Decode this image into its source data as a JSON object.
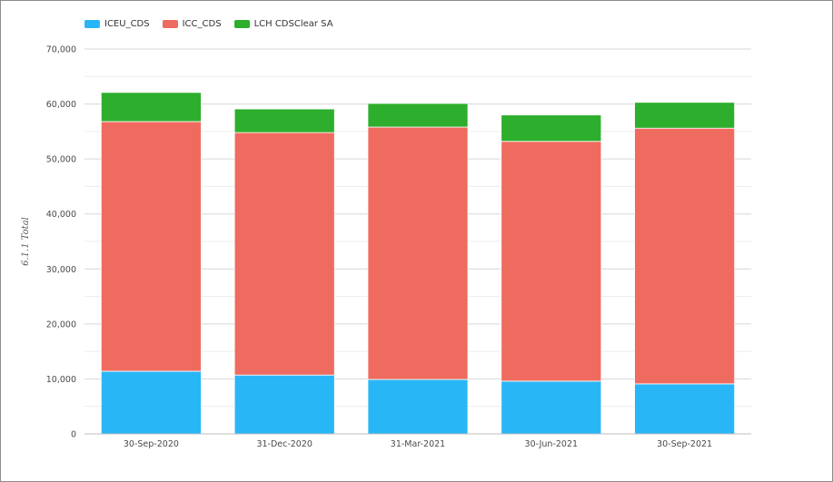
{
  "chart_data": {
    "type": "bar",
    "stacked": true,
    "categories": [
      "30-Sep-2020",
      "31-Dec-2020",
      "31-Mar-2021",
      "30-Jun-2021",
      "30-Sep-2021"
    ],
    "series": [
      {
        "name": "ICEU_CDS",
        "color": "#29b6f6",
        "values": [
          11400,
          10700,
          9900,
          9600,
          9100
        ]
      },
      {
        "name": "ICC_CDS",
        "color": "#f06b5f",
        "values": [
          45400,
          44100,
          45900,
          43600,
          46500
        ]
      },
      {
        "name": "LCH CDSClear SA",
        "color": "#2dae2d",
        "values": [
          5300,
          4300,
          4300,
          4800,
          4700
        ]
      }
    ],
    "title": "",
    "xlabel": "",
    "ylabel": "6.1.1 Total",
    "ylim": [
      0,
      70000
    ],
    "yticks": [
      0,
      10000,
      20000,
      30000,
      40000,
      50000,
      60000,
      70000
    ],
    "ytick_labels": [
      "0",
      "10,000",
      "20,000",
      "30,000",
      "40,000",
      "50,000",
      "60,000",
      "70,000"
    ],
    "grid": true,
    "legend_position": "top-left"
  }
}
